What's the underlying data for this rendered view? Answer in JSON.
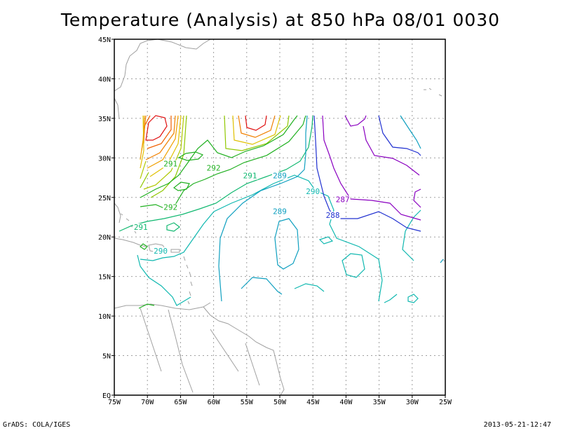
{
  "title": "Temperature (Analysis) at 850 hPa 08/01 0030",
  "footer": {
    "left": "GrADS: COLA/IGES",
    "right": "2013-05-21-12:47"
  },
  "axes": {
    "x_ticks": [
      "75W",
      "70W",
      "65W",
      "60W",
      "55W",
      "50W",
      "45W",
      "40W",
      "35W",
      "30W",
      "25W"
    ],
    "y_ticks": [
      "EQ",
      "5N",
      "10N",
      "15N",
      "20N",
      "25N",
      "30N",
      "35N",
      "40N",
      "45N"
    ],
    "lon_range": [
      -75,
      -25
    ],
    "lat_range": [
      0,
      45
    ],
    "grid": "dotted"
  },
  "contour_labels": [
    {
      "text": "291",
      "lon": -66.5,
      "lat": 29,
      "color": "#20b020"
    },
    {
      "text": "292",
      "lon": -60,
      "lat": 28.5,
      "color": "#20b020"
    },
    {
      "text": "291",
      "lon": -54.5,
      "lat": 27.5,
      "color": "#10b870"
    },
    {
      "text": "289",
      "lon": -50,
      "lat": 27.5,
      "color": "#10a0c0"
    },
    {
      "text": "290",
      "lon": -45,
      "lat": 25.5,
      "color": "#10b8b0"
    },
    {
      "text": "287",
      "lon": -40.5,
      "lat": 24.5,
      "color": "#8a00c0"
    },
    {
      "text": "288",
      "lon": -42,
      "lat": 22.5,
      "color": "#2030d0"
    },
    {
      "text": "289",
      "lon": -50,
      "lat": 23,
      "color": "#10a0c0"
    },
    {
      "text": "292",
      "lon": -66.5,
      "lat": 23.5,
      "color": "#20b020"
    },
    {
      "text": "291",
      "lon": -71,
      "lat": 21,
      "color": "#10b870"
    },
    {
      "text": "290",
      "lon": -68,
      "lat": 18,
      "color": "#10b8b0"
    }
  ],
  "colors": {
    "frame": "#000000",
    "grid": "#a0a0a0",
    "coast": "#a0a0a0",
    "red": "#e01010",
    "orange": "#f08000",
    "yellow": "#e0c000",
    "yellowgreen": "#90c800",
    "green": "#20b020",
    "teal": "#10b870",
    "cyan": "#10b8b0",
    "blue": "#10a0c0",
    "darkblue": "#2030d0",
    "purple": "#8a00c0"
  }
}
